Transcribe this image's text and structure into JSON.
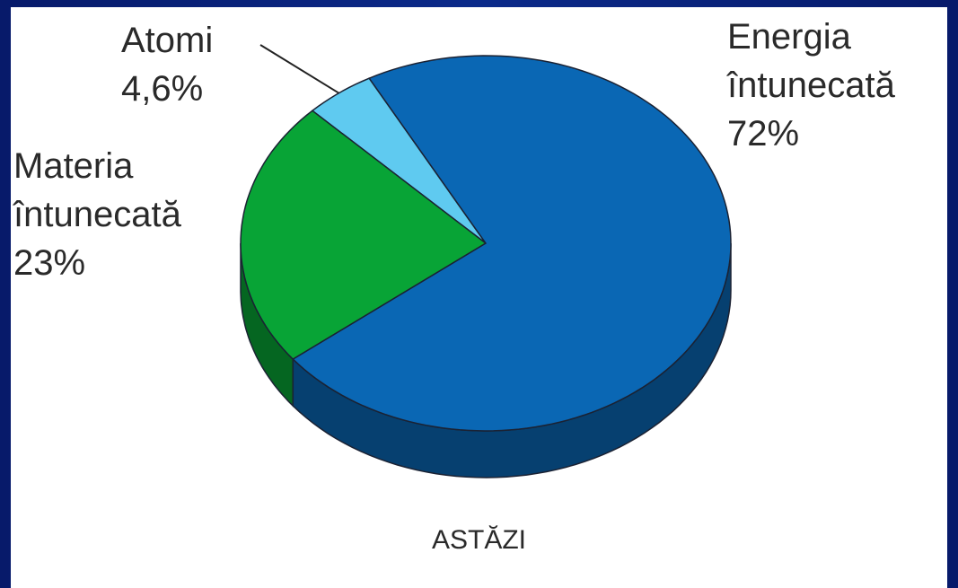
{
  "chart_data": {
    "type": "pie",
    "title": "ASTĂZI",
    "categories": [
      "Energia întunecată",
      "Materia întunecată",
      "Atomi"
    ],
    "values": [
      72,
      23,
      4.6
    ],
    "value_labels": [
      "72%",
      "23%",
      "4,6%"
    ],
    "colors": [
      "#0a67b4",
      "#08a436",
      "#5fcaf0"
    ]
  }
}
